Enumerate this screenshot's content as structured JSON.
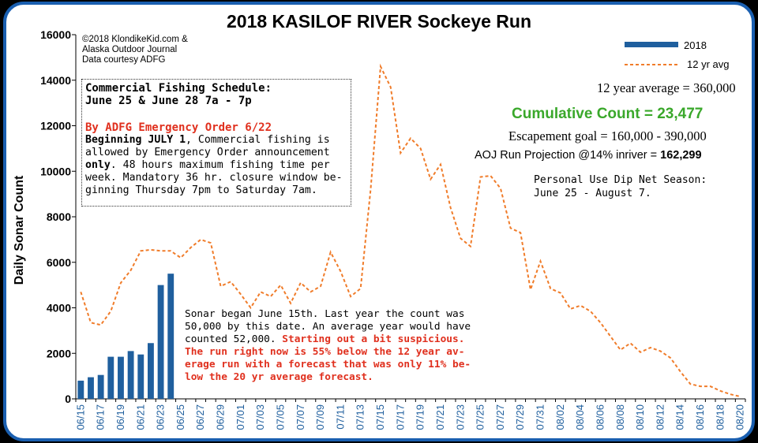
{
  "chart_data": {
    "type": "bar+line",
    "title": "2018 KASILOF RIVER Sockeye Run",
    "ylabel": "Daily Sonar Count",
    "ylim": [
      0,
      16000
    ],
    "yticks": [
      "0",
      "2000",
      "4000",
      "6000",
      "8000",
      "10000",
      "12000",
      "14000",
      "16000"
    ],
    "x_labels": [
      "06/15",
      "06/17",
      "06/19",
      "06/21",
      "06/23",
      "06/25",
      "06/27",
      "06/29",
      "07/01",
      "07/03",
      "07/05",
      "07/07",
      "07/09",
      "07/11",
      "07/13",
      "07/15",
      "07/17",
      "07/19",
      "07/21",
      "07/23",
      "07/25",
      "07/27",
      "07/29",
      "07/31",
      "08/02",
      "08/04",
      "08/06",
      "08/08",
      "08/10",
      "08/12",
      "08/14",
      "08/16",
      "08/18",
      "08/20"
    ],
    "bar_series": {
      "name": "2018",
      "color": "#1f5f9e",
      "values": [
        800,
        950,
        1050,
        1850,
        1850,
        2100,
        1950,
        2450,
        5000,
        5500
      ]
    },
    "line_series": {
      "name": "12 yr avg",
      "color": "#f07c2a",
      "values": [
        4700,
        3350,
        3250,
        3850,
        5100,
        5650,
        6500,
        6550,
        6500,
        6500,
        6200,
        6650,
        7000,
        6850,
        4950,
        5150,
        4600,
        4000,
        4700,
        4500,
        5000,
        4200,
        5100,
        4700,
        4950,
        6450,
        5600,
        4500,
        4850,
        9200,
        14600,
        13700,
        10800,
        11450,
        11000,
        9650,
        10300,
        8400,
        7050,
        6700,
        9750,
        9800,
        9250,
        7500,
        7300,
        4800,
        6050,
        4850,
        4650,
        3950,
        4100,
        3850,
        3350,
        2750,
        2150,
        2450,
        2050,
        2250,
        2100,
        1800,
        1200,
        650,
        550,
        550,
        350,
        200,
        100
      ]
    },
    "legend": "top-right",
    "grid": false
  },
  "copyright": [
    "©2018 KlondikeKid.com &",
    "Alaska Outdoor Journal",
    "Data courtesy ADFG"
  ],
  "schedule_box": {
    "heading1": "Commercial Fishing Schedule:",
    "heading2": "June 25 & June 28  7a - 7p",
    "order": "By ADFG Emergency Order 6/22",
    "begin_bold": "Beginning JULY 1",
    "begin_rest": ", Commercial fishing is",
    "line2": "allowed by Emergency Order announcement",
    "only_bold": "only",
    "line3_rest": ". 48 hours maximum fishing time per",
    "line4": "week. Mandatory 36 hr. closure window be-",
    "line5": "ginning Thursday 7pm to Saturday 7am."
  },
  "stats": {
    "avg": "12 year average = 360,000",
    "cumulative": "Cumulative Count = 23,477",
    "cumulative_color": "#3aa82b",
    "goal": "Escapement goal = 160,000 - 390,000",
    "projection_label": "AOJ Run Projection @14% inriver = ",
    "projection_value": "162,299"
  },
  "dipnet": [
    "Personal Use Dip Net Season:",
    "June 25 - August 7."
  ],
  "note": {
    "black": [
      "Sonar began June 15th. Last year the count was",
      "50,000 by this date. An average year would have",
      "counted  52,000.  "
    ],
    "red_inline": "Starting out a bit suspicious.",
    "red": [
      "The run right now is 55% below the 12 year av-",
      "erage run with a forecast that was only 11% be-",
      "low the 20 yr average forecast."
    ]
  }
}
